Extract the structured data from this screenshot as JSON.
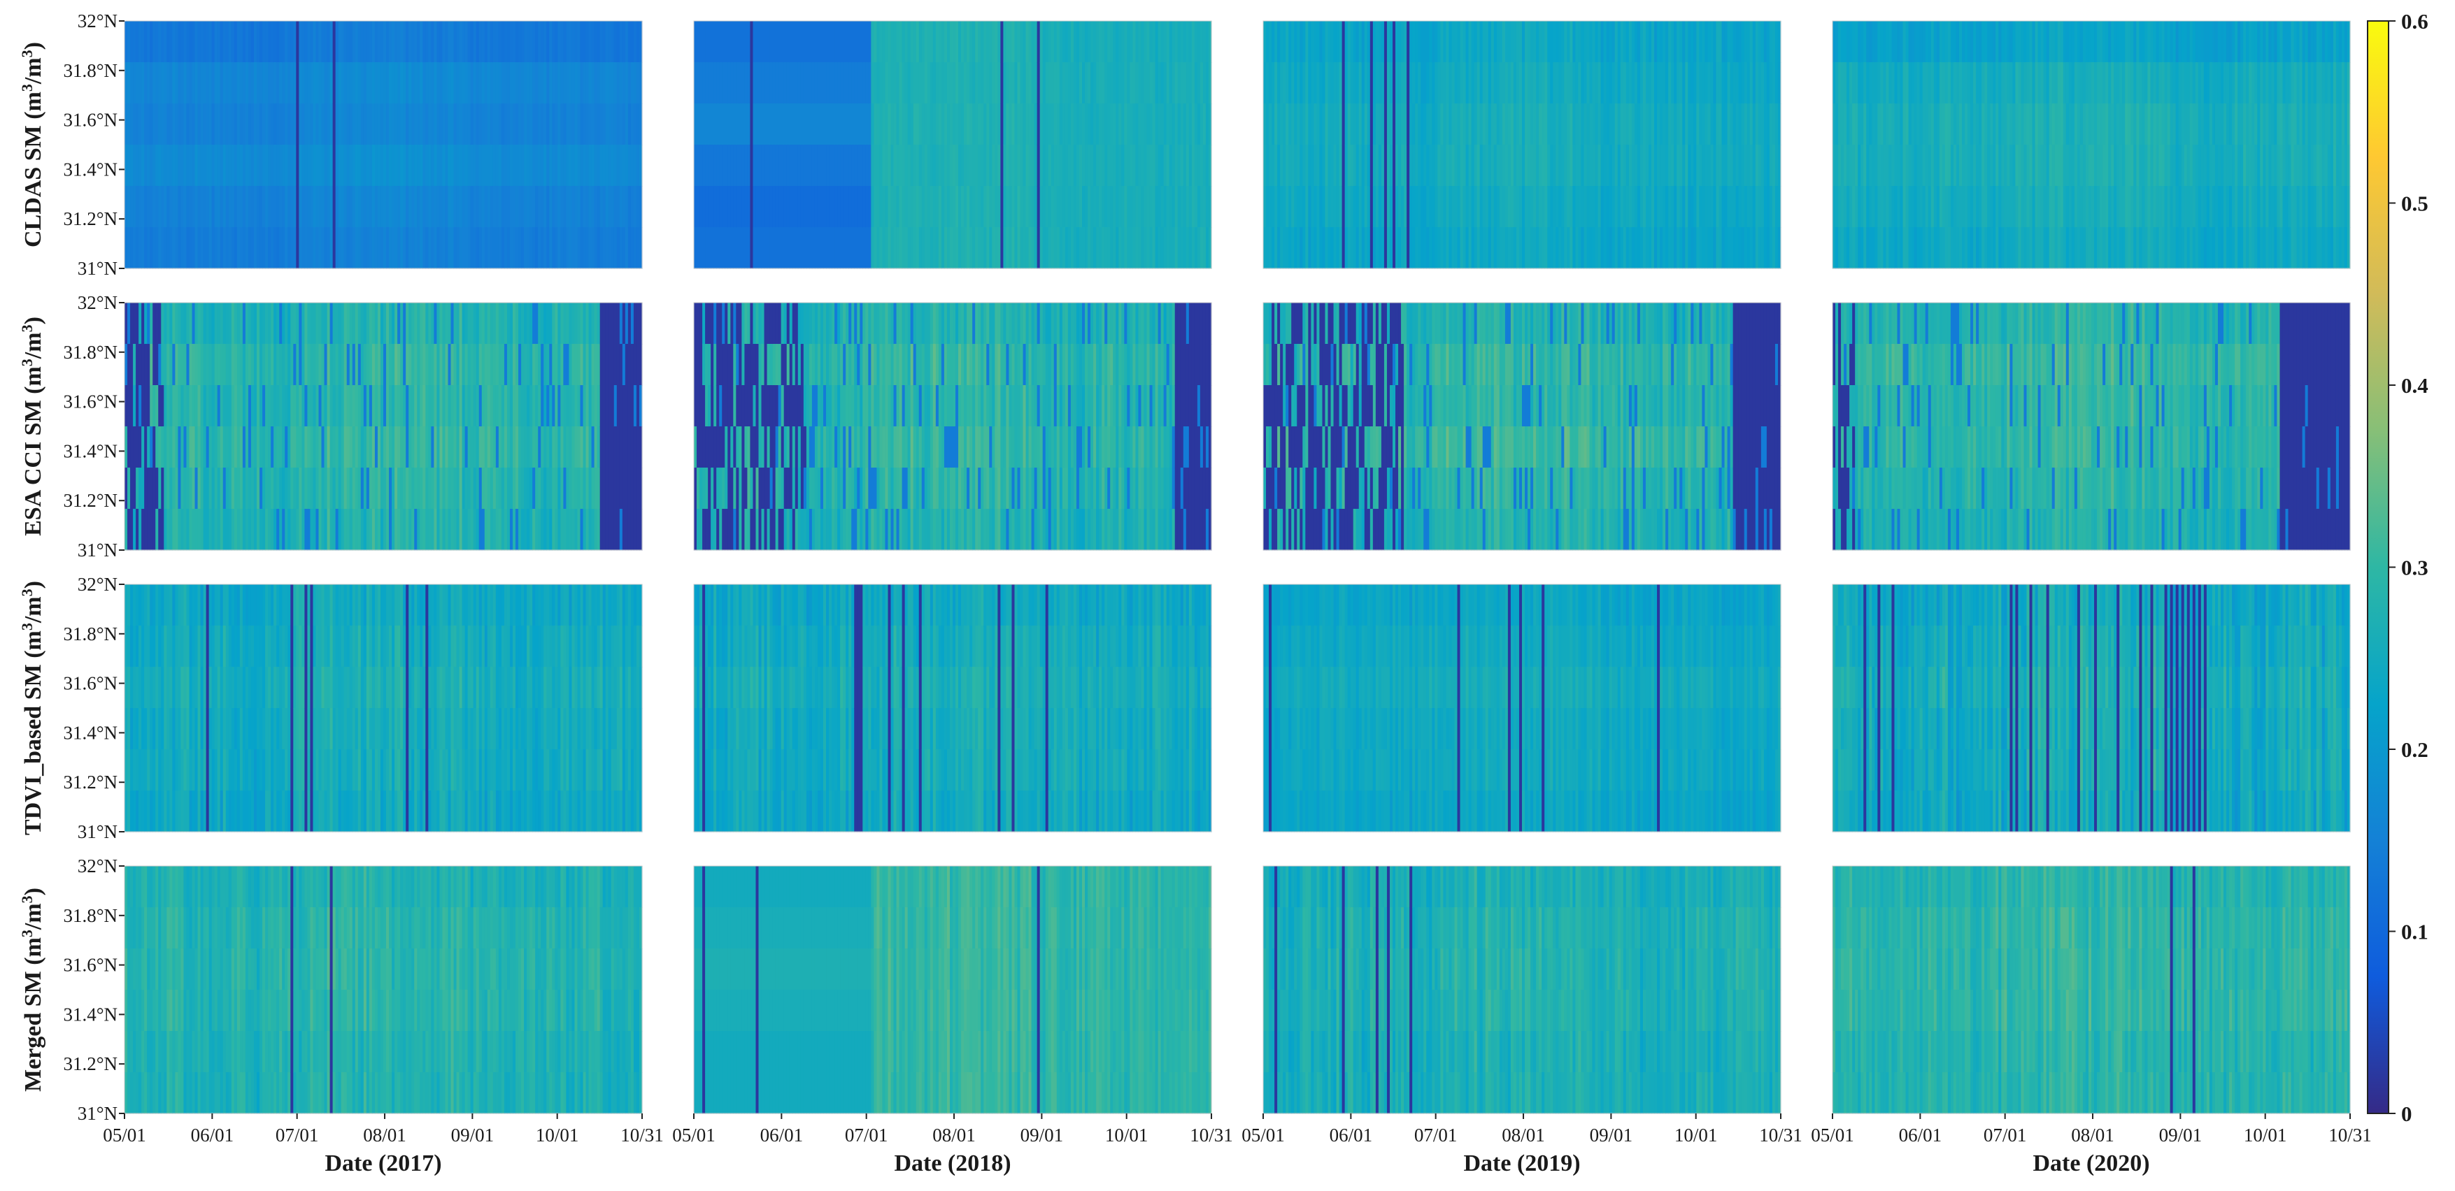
{
  "chart_data": {
    "type": "heatmap",
    "title": "",
    "colormap": "parula",
    "colorbar": {
      "min": 0,
      "max": 0.6,
      "ticks": [
        "0",
        "0.1",
        "0.2",
        "0.3",
        "0.4",
        "0.5",
        "0.6"
      ]
    },
    "latitude_ticks": [
      "32°N",
      "31.8°N",
      "31.6°N",
      "31.4°N",
      "31.2°N",
      "31°N"
    ],
    "date_ticks": [
      "05/01",
      "06/01",
      "07/01",
      "08/01",
      "09/01",
      "10/01",
      "10/31"
    ],
    "date_range": {
      "start": "05/01",
      "end": "10/31",
      "days": 184
    },
    "lat_range": [
      31,
      32
    ],
    "columns": [
      {
        "year": 2017,
        "xlabel": "Date (2017)"
      },
      {
        "year": 2018,
        "xlabel": "Date (2018)"
      },
      {
        "year": 2019,
        "xlabel": "Date (2019)"
      },
      {
        "year": 2020,
        "xlabel": "Date (2020)"
      }
    ],
    "rows": [
      {
        "product": "CLDAS SM",
        "ylabel_main": "CLDAS SM (m",
        "ylabel_units": "3",
        "ylabel_tail": "/m",
        "ylabel_units2": "3",
        "ylabel_close": ")",
        "panels": [
          {
            "base": 0.13,
            "band": [
              0.13,
              0.16,
              0.15,
              0.17,
              0.15,
              0.14
            ],
            "noise": 0.01,
            "seg": null,
            "gaps": [
              61,
              74
            ]
          },
          {
            "base": 0.12,
            "band": [
              0.12,
              0.14,
              0.16,
              0.13,
              0.11,
              0.12
            ],
            "noise": 0.01,
            "seg": {
              "until": 63,
              "after": 0.26
            },
            "gaps": [
              20,
              109,
              122
            ]
          },
          {
            "base": 0.24,
            "band": [
              0.23,
              0.24,
              0.25,
              0.25,
              0.24,
              0.23
            ],
            "noise": 0.02,
            "seg": null,
            "gaps": [
              28,
              38,
              43,
              46,
              51
            ]
          },
          {
            "base": 0.25,
            "band": [
              0.22,
              0.25,
              0.26,
              0.26,
              0.25,
              0.24
            ],
            "noise": 0.02,
            "seg": null,
            "gaps": []
          }
        ]
      },
      {
        "product": "ESA CCI SM",
        "ylabel_main": "ESA CCI SM (m",
        "ylabel_units": "3",
        "ylabel_tail": "/m",
        "ylabel_units2": "3",
        "ylabel_close": ")",
        "panels": [
          {
            "base": 0.27,
            "band": [
              0.27,
              0.29,
              0.28,
              0.29,
              0.28,
              0.27
            ],
            "noise": 0.03,
            "sparse": 0.35,
            "edgeMissing": [
              14,
              168
            ],
            "gaps": []
          },
          {
            "base": 0.27,
            "band": [
              0.27,
              0.29,
              0.28,
              0.29,
              0.28,
              0.27
            ],
            "noise": 0.03,
            "sparse": 0.4,
            "edgeMissing": [
              40,
              170
            ],
            "gaps": []
          },
          {
            "base": 0.27,
            "band": [
              0.27,
              0.29,
              0.28,
              0.3,
              0.28,
              0.27
            ],
            "noise": 0.03,
            "sparse": 0.4,
            "edgeMissing": [
              50,
              166
            ],
            "gaps": []
          },
          {
            "base": 0.28,
            "band": [
              0.28,
              0.3,
              0.29,
              0.29,
              0.28,
              0.27
            ],
            "noise": 0.03,
            "sparse": 0.35,
            "edgeMissing": [
              8,
              158
            ],
            "gaps": []
          }
        ]
      },
      {
        "product": "TDVI_based SM",
        "ylabel_main": "TDVI_based SM (m",
        "ylabel_units": "3",
        "ylabel_tail": "/m",
        "ylabel_units2": "3",
        "ylabel_close": ")",
        "panels": [
          {
            "base": 0.25,
            "band": [
              0.24,
              0.25,
              0.26,
              0.25,
              0.25,
              0.24
            ],
            "noise": 0.03,
            "seg": null,
            "gaps": [
              29,
              59,
              64,
              66,
              100,
              107
            ]
          },
          {
            "base": 0.25,
            "band": [
              0.24,
              0.25,
              0.26,
              0.25,
              0.25,
              0.24
            ],
            "noise": 0.03,
            "seg": null,
            "gaps": [
              3,
              57,
              58,
              59,
              69,
              74,
              80,
              108,
              113,
              125
            ]
          },
          {
            "base": 0.24,
            "band": [
              0.23,
              0.24,
              0.25,
              0.24,
              0.24,
              0.23
            ],
            "noise": 0.02,
            "seg": null,
            "gaps": [
              2,
              69,
              87,
              91,
              99,
              140
            ]
          },
          {
            "base": 0.25,
            "band": [
              0.24,
              0.25,
              0.26,
              0.25,
              0.25,
              0.24
            ],
            "noise": 0.04,
            "seg": null,
            "gaps": [
              11,
              16,
              21,
              63,
              65,
              70,
              76,
              87,
              93,
              101,
              109,
              113,
              118,
              120,
              122,
              124,
              126,
              128,
              130,
              132
            ]
          }
        ]
      },
      {
        "product": "Merged SM",
        "ylabel_main": "Merged SM (m",
        "ylabel_units": "3",
        "ylabel_tail": "/m",
        "ylabel_units2": "3",
        "ylabel_close": ")",
        "panels": [
          {
            "base": 0.27,
            "band": [
              0.27,
              0.28,
              0.28,
              0.28,
              0.27,
              0.27
            ],
            "noise": 0.03,
            "seg": null,
            "gaps": [
              59,
              73
            ]
          },
          {
            "base": 0.25,
            "band": [
              0.25,
              0.26,
              0.27,
              0.26,
              0.25,
              0.25
            ],
            "noise": 0.03,
            "seg": {
              "until": 63,
              "after": 0.29
            },
            "gaps": [
              3,
              22,
              122
            ]
          },
          {
            "base": 0.26,
            "band": [
              0.26,
              0.27,
              0.27,
              0.27,
              0.26,
              0.26
            ],
            "noise": 0.03,
            "seg": null,
            "gaps": [
              4,
              28,
              40,
              44,
              52
            ]
          },
          {
            "base": 0.28,
            "band": [
              0.28,
              0.29,
              0.29,
              0.29,
              0.28,
              0.28
            ],
            "noise": 0.03,
            "seg": null,
            "gaps": [
              120,
              128
            ]
          }
        ]
      }
    ]
  }
}
